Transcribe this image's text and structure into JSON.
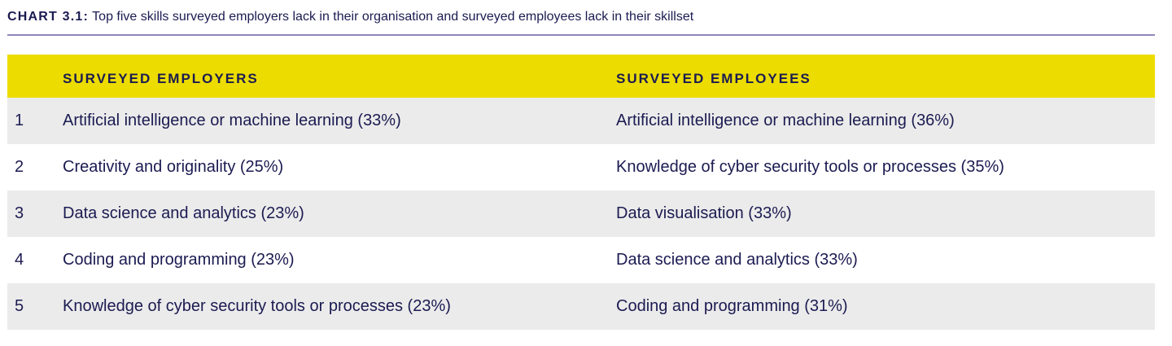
{
  "chart_data": {
    "type": "table",
    "title_label": "CHART 3.1:",
    "title": "Top five skills surveyed employers lack in their organisation and surveyed employees lack in their skillset",
    "columns": [
      "",
      "SURVEYED EMPLOYERS",
      "SURVEYED EMPLOYEES"
    ],
    "rows": [
      {
        "rank": "1",
        "employers": "Artificial intelligence or machine learning (33%)",
        "employees": "Artificial intelligence or machine learning (36%)"
      },
      {
        "rank": "2",
        "employers": "Creativity and originality (25%)",
        "employees": "Knowledge of cyber security tools or processes (35%)"
      },
      {
        "rank": "3",
        "employers": "Data science and analytics (23%)",
        "employees": "Data visualisation (33%)"
      },
      {
        "rank": "4",
        "employers": "Coding and programming (23%)",
        "employees": "Data science and analytics (33%)"
      },
      {
        "rank": "5",
        "employers": "Knowledge of cyber security tools or processes (23%)",
        "employees": "Coding and programming (31%)"
      }
    ]
  },
  "colors": {
    "header": "#ecdc00",
    "stripe": "#ebebeb",
    "text": "#1b1b52",
    "rule": "#8c88b8"
  }
}
